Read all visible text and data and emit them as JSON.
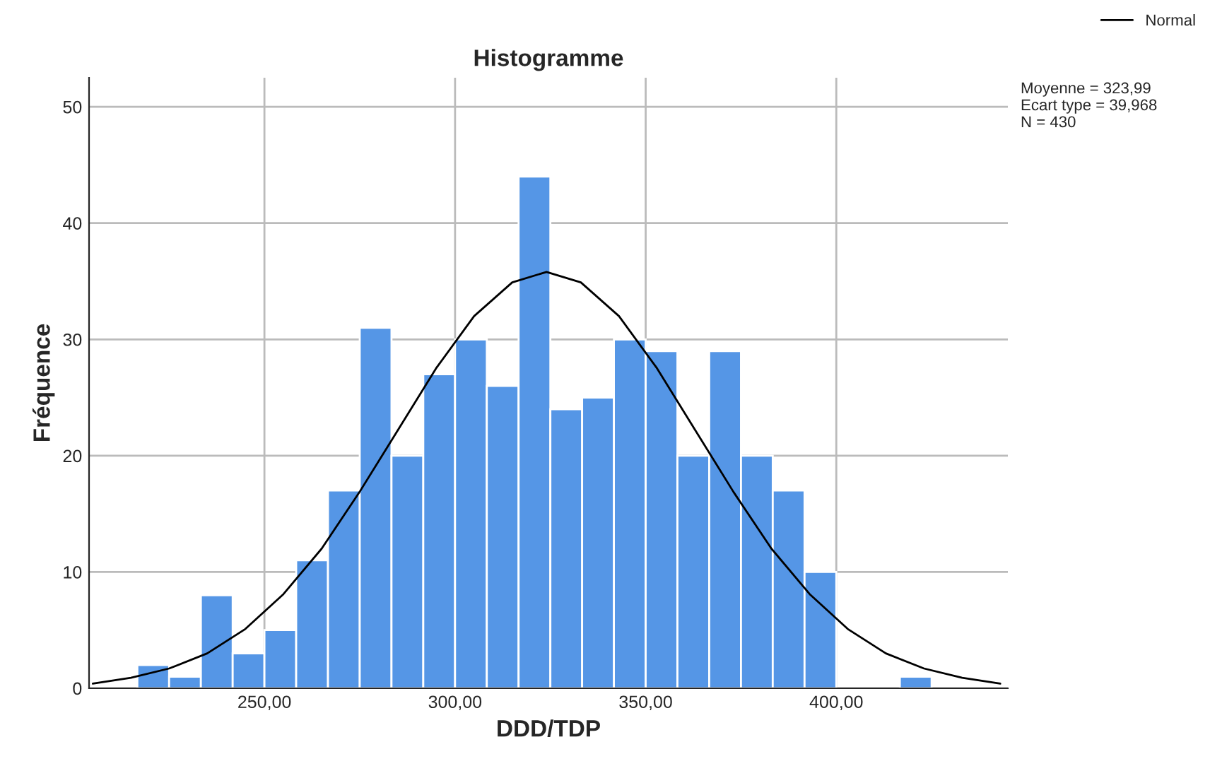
{
  "chart_data": {
    "type": "histogram",
    "title": "Histogramme",
    "xlabel": "DDD/TDP",
    "ylabel": "Fréquence",
    "bins": [
      216.67,
      225,
      233.33,
      241.67,
      250,
      258.33,
      266.67,
      275,
      283.33,
      291.67,
      300,
      308.33,
      316.67,
      325,
      333.33,
      341.67,
      350,
      358.33,
      366.67,
      375,
      383.33,
      391.67,
      400,
      408.33,
      416.67,
      425
    ],
    "values": [
      2,
      1,
      8,
      3,
      5,
      11,
      17,
      31,
      20,
      27,
      30,
      26,
      44,
      24,
      25,
      30,
      29,
      20,
      29,
      20,
      17,
      10,
      0,
      0,
      1
    ],
    "color": "#5596e6",
    "series": [
      {
        "type": "line",
        "name": "Normal",
        "color": "#000000",
        "x": [
          205,
          215,
          225,
          235,
          245,
          255,
          265,
          275,
          285,
          295,
          305,
          315,
          324,
          333,
          343,
          353,
          363,
          373,
          383,
          393,
          403,
          413,
          423,
          433,
          443
        ],
        "values": [
          0.4,
          0.9,
          1.7,
          3,
          5.1,
          8.1,
          12,
          16.9,
          22.2,
          27.5,
          32,
          34.9,
          35.8,
          34.9,
          32,
          27.5,
          22.2,
          16.9,
          12,
          8.1,
          5.1,
          3,
          1.7,
          0.9,
          0.4
        ]
      }
    ],
    "xlim": [
      204,
      445
    ],
    "ylim": [
      0,
      52.5
    ],
    "xticks": [
      {
        "value": 250,
        "label": "250,00"
      },
      {
        "value": 300,
        "label": "300,00"
      },
      {
        "value": 350,
        "label": "350,00"
      },
      {
        "value": 400,
        "label": "400,00"
      }
    ],
    "yticks": [
      0,
      10,
      20,
      30,
      40,
      50
    ],
    "annotations": [
      "Moyenne = 323,99\nEcart type = 39,968\nN = 430"
    ],
    "grid": true,
    "legend": "top right"
  }
}
